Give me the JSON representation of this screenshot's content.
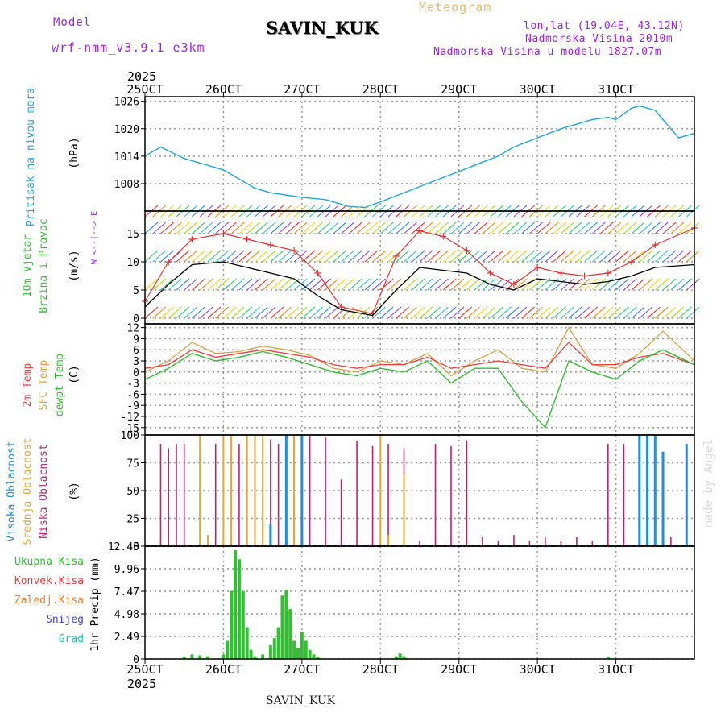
{
  "header": {
    "model_label": "Model",
    "model_name": "wrf-nmm_v3.9.1  e3km",
    "title": "SAVIN_KUK",
    "subtitle": "Meteogram",
    "coords": "lon,lat (19.04E, 43.12N)",
    "altitude": "Nadmorska Visina 2010m",
    "model_altitude": "Nadmorska Visina u modelu 1827.07m",
    "year_top": "2025",
    "year_bottom": "2025",
    "bottom_station": "SAVIN_KUK",
    "watermark": "made by Angel"
  },
  "colors": {
    "pressure": "#1aa7e0",
    "t2m": "#f03c3c",
    "sfc": "#e0a040",
    "dewpt": "#30c030",
    "wind_speed": "#000000",
    "gust": "#e83030",
    "cloud_high": "#1e90e0",
    "cloud_mid": "#e8a830",
    "cloud_low": "#c0207a",
    "precip": "#30c030",
    "grid": "#999999"
  },
  "chart_data": [
    {
      "type": "line",
      "panel": "pressure",
      "ylabel_outer": "Pritisak na nivou mora",
      "ylabel_unit": "(hPa)",
      "x_ticks": [
        "25OCT",
        "26OCT",
        "27OCT",
        "28OCT",
        "29OCT",
        "30OCT",
        "31OCT"
      ],
      "ylim": [
        1002,
        1027
      ],
      "y_ticks": [
        1008,
        1014,
        1020,
        1026
      ],
      "x_days": [
        0,
        0.2,
        0.5,
        0.8,
        1.0,
        1.2,
        1.4,
        1.6,
        2.0,
        2.3,
        2.6,
        2.8,
        3.0,
        3.3,
        3.6,
        3.9,
        4.2,
        4.5,
        4.7,
        5.0,
        5.3,
        5.5,
        5.7,
        5.9,
        6.0,
        6.2,
        6.3,
        6.5,
        6.7,
        6.8,
        7.0
      ],
      "values": [
        1014,
        1016,
        1013.5,
        1012,
        1011,
        1009,
        1007,
        1006,
        1005,
        1004.5,
        1003,
        1002.8,
        1004,
        1006,
        1008,
        1010,
        1012,
        1014,
        1016,
        1018,
        1020,
        1021,
        1022,
        1022.5,
        1022,
        1024.5,
        1025,
        1024,
        1020,
        1018,
        1019
      ]
    },
    {
      "type": "line",
      "panel": "wind",
      "ylabel_outer": "10m Vjetar",
      "ylabel_outer2": "Brzina i Pravac",
      "ylabel_unit": "(m/s)",
      "compass_label": "W <--|--> E",
      "ylim": [
        -1,
        19
      ],
      "y_ticks": [
        0,
        5,
        10,
        15
      ],
      "x_days": [
        0,
        0.3,
        0.6,
        1.0,
        1.3,
        1.6,
        1.9,
        2.2,
        2.5,
        2.9,
        3.2,
        3.5,
        3.8,
        4.1,
        4.4,
        4.7,
        5.0,
        5.3,
        5.6,
        5.9,
        6.2,
        6.5,
        7.0
      ],
      "speed": [
        2,
        6,
        9.5,
        10,
        9,
        8,
        7,
        4,
        1.5,
        0.5,
        5,
        9,
        8.5,
        8,
        6,
        5,
        7,
        6.5,
        6,
        6.5,
        7.5,
        9,
        9.5
      ],
      "gust": [
        3,
        10,
        14,
        15,
        14,
        13,
        12,
        8,
        2,
        0.8,
        11,
        15.5,
        14.5,
        12,
        8,
        6,
        9,
        8,
        7.5,
        8,
        10,
        13,
        16
      ]
    },
    {
      "type": "line",
      "panel": "temperature",
      "series_labels": [
        "2m Temp",
        "SFC Temp",
        "dewpt Temp"
      ],
      "ylabel_unit": "(C)",
      "ylim": [
        -17,
        13
      ],
      "y_ticks": [
        -15,
        -12,
        -9,
        -6,
        -3,
        0,
        3,
        6,
        9,
        12
      ],
      "x_days": [
        0,
        0.3,
        0.6,
        0.9,
        1.2,
        1.5,
        1.8,
        2.1,
        2.4,
        2.7,
        3.0,
        3.3,
        3.6,
        3.9,
        4.2,
        4.5,
        4.8,
        5.1,
        5.4,
        5.7,
        6.0,
        6.3,
        6.6,
        7.0
      ],
      "t2m": [
        1,
        2,
        6,
        4,
        5,
        6,
        5,
        4,
        2,
        1,
        2,
        2,
        4,
        1,
        2,
        3,
        2,
        1,
        8,
        2,
        2,
        4,
        5,
        2
      ],
      "sfc": [
        0,
        3,
        8,
        5,
        5.5,
        7,
        6,
        4.5,
        1,
        0,
        3,
        2,
        5,
        -1,
        3,
        6,
        1,
        0,
        12,
        2,
        1,
        5,
        11,
        3
      ],
      "dewpt": [
        -2,
        1,
        5,
        3,
        4,
        5.5,
        4,
        2,
        0,
        -1,
        1,
        0,
        3,
        -3,
        1,
        1,
        -8,
        -15,
        3,
        0,
        -2,
        3,
        6,
        2
      ]
    },
    {
      "type": "bar",
      "panel": "clouds",
      "series_labels": [
        "Visoka Oblacnost",
        "Srednja Oblacnost",
        "Niska Oblacnost"
      ],
      "ylabel_unit": "(%)",
      "ylim": [
        0,
        100
      ],
      "y_ticks": [
        0,
        25,
        50,
        75,
        100
      ],
      "low_days": [
        0.2,
        0.3,
        0.4,
        0.5,
        0.7,
        0.9,
        1.1,
        1.2,
        1.4,
        1.6,
        1.7,
        1.9,
        2.0,
        2.1,
        2.3,
        2.5,
        2.7,
        2.9,
        3.1,
        3.3,
        3.5,
        3.7,
        3.9,
        4.1,
        4.3,
        4.5,
        4.7,
        4.9,
        5.1,
        5.3,
        5.5,
        5.7,
        5.9,
        6.1,
        6.3,
        6.5,
        6.7,
        6.9
      ],
      "low_values": [
        92,
        88,
        92,
        92,
        94,
        92,
        100,
        92,
        100,
        96,
        92,
        100,
        92,
        100,
        98,
        60,
        95,
        90,
        92,
        88,
        5,
        92,
        90,
        95,
        8,
        5,
        10,
        5,
        8,
        5,
        8,
        5,
        92,
        92,
        10,
        5,
        8,
        5
      ],
      "mid_days": [
        0.7,
        0.8,
        1.0,
        1.1,
        1.3,
        1.4,
        1.5,
        1.8,
        1.9,
        3.0,
        3.1,
        3.3
      ],
      "mid_values": [
        100,
        10,
        100,
        100,
        100,
        100,
        100,
        100,
        100,
        100,
        10,
        65
      ],
      "high_days": [
        1.6,
        1.8,
        2.0,
        6.3,
        6.4,
        6.5,
        6.6,
        6.9
      ],
      "high_values": [
        20,
        100,
        100,
        100,
        100,
        100,
        85,
        92
      ]
    },
    {
      "type": "bar",
      "panel": "precip",
      "series_labels": [
        "Ukupna Kisa",
        "Konvek.Kisa",
        "Zaledj.Kisa",
        "Snijeg",
        "Grad"
      ],
      "ylabel_unit": "1hr Precip (mm)",
      "ylim": [
        0,
        12.45
      ],
      "y_ticks": [
        0,
        2.49,
        4.98,
        7.47,
        9.96,
        12.45
      ],
      "x_ticks": [
        "25OCT",
        "26OCT",
        "27OCT",
        "28OCT",
        "29OCT",
        "30OCT",
        "31OCT"
      ],
      "days": [
        0.5,
        0.6,
        0.7,
        0.8,
        1.0,
        1.05,
        1.1,
        1.15,
        1.2,
        1.25,
        1.3,
        1.35,
        1.4,
        1.5,
        1.6,
        1.65,
        1.7,
        1.75,
        1.8,
        1.85,
        1.9,
        1.95,
        2.0,
        2.05,
        2.1,
        2.15,
        2.2,
        3.2,
        3.25,
        3.3,
        5.9
      ],
      "values": [
        0.2,
        0.5,
        0.4,
        0.3,
        0.5,
        2.0,
        7.5,
        12.0,
        11.0,
        7.5,
        3.5,
        1.0,
        0.3,
        0.5,
        1.5,
        2.3,
        3.5,
        7.0,
        7.6,
        5.5,
        2.0,
        1.2,
        3.0,
        2.0,
        1.0,
        0.5,
        0.2,
        0.3,
        0.6,
        0.3,
        0.2
      ]
    }
  ]
}
